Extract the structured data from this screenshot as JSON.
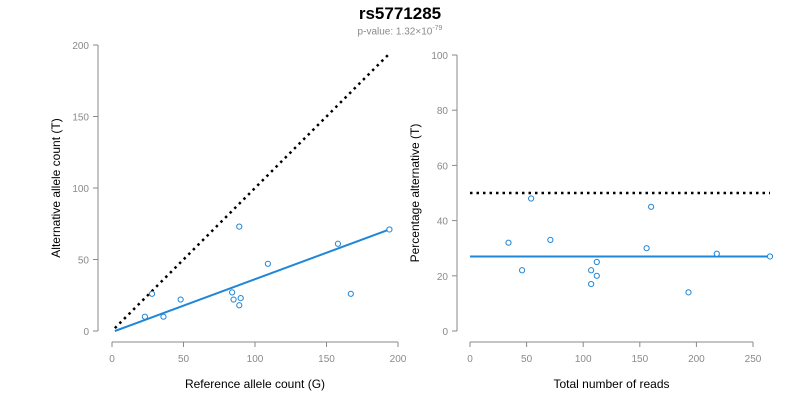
{
  "header": {
    "title": "rs5771285",
    "pvalue_prefix": "p-value: 1.32×10",
    "pvalue_exponent": "-79"
  },
  "colors": {
    "point": "#1f86d8",
    "fit_line": "#1f86d8",
    "reference_line": "#000000",
    "axis": "#8a8a8a"
  },
  "chart_data": [
    {
      "type": "scatter",
      "id": "left",
      "xlabel": "Reference allele count (G)",
      "ylabel": "Alternative allele count (T)",
      "xlim": [
        0,
        200
      ],
      "ylim": [
        0,
        200
      ],
      "xticks": [
        0,
        50,
        100,
        150,
        200
      ],
      "yticks": [
        0,
        50,
        100,
        150,
        200
      ],
      "points": [
        {
          "x": 23,
          "y": 10
        },
        {
          "x": 28,
          "y": 26
        },
        {
          "x": 36,
          "y": 10
        },
        {
          "x": 48,
          "y": 22
        },
        {
          "x": 84,
          "y": 27
        },
        {
          "x": 85,
          "y": 22
        },
        {
          "x": 89,
          "y": 18
        },
        {
          "x": 90,
          "y": 23
        },
        {
          "x": 89,
          "y": 73
        },
        {
          "x": 109,
          "y": 47
        },
        {
          "x": 158,
          "y": 61
        },
        {
          "x": 167,
          "y": 26
        },
        {
          "x": 194,
          "y": 71
        }
      ],
      "fit_line": {
        "x": [
          2,
          194
        ],
        "y": [
          0,
          71
        ]
      },
      "reference_line": {
        "x": [
          2,
          194
        ],
        "y": [
          2,
          194
        ]
      }
    },
    {
      "type": "scatter",
      "id": "right",
      "xlabel": "Total number of reads",
      "ylabel": "Percentage alternative (T)",
      "xlim": [
        0,
        265
      ],
      "ylim": [
        0,
        100
      ],
      "xticks": [
        0,
        50,
        100,
        150,
        200,
        250
      ],
      "yticks": [
        0,
        20,
        40,
        60,
        80,
        100
      ],
      "points": [
        {
          "x": 34,
          "y": 32
        },
        {
          "x": 46,
          "y": 22
        },
        {
          "x": 54,
          "y": 48
        },
        {
          "x": 71,
          "y": 33
        },
        {
          "x": 107,
          "y": 22
        },
        {
          "x": 107,
          "y": 17
        },
        {
          "x": 112,
          "y": 25
        },
        {
          "x": 112,
          "y": 20
        },
        {
          "x": 156,
          "y": 30
        },
        {
          "x": 160,
          "y": 45
        },
        {
          "x": 193,
          "y": 14
        },
        {
          "x": 218,
          "y": 28
        },
        {
          "x": 265,
          "y": 27
        }
      ],
      "fit_line": {
        "x": [
          0,
          265
        ],
        "y": [
          27,
          27
        ]
      },
      "reference_line": {
        "x": [
          0,
          265
        ],
        "y": [
          50,
          50
        ]
      }
    }
  ]
}
